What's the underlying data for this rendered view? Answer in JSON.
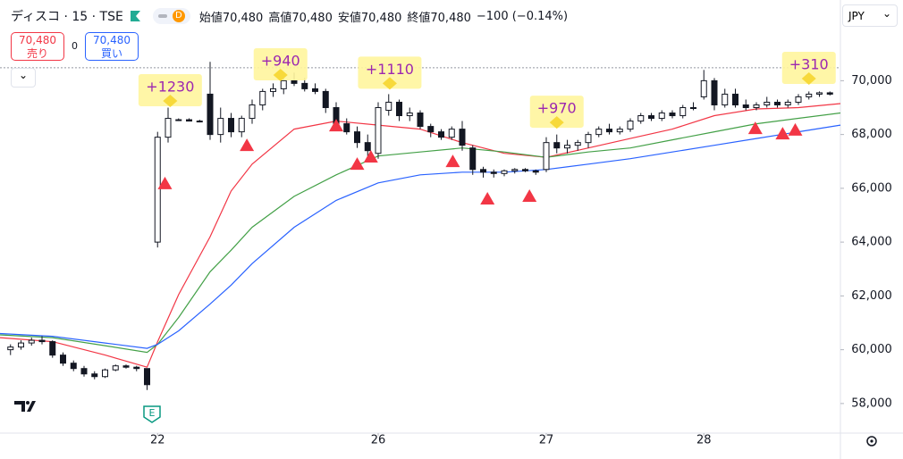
{
  "toolbar": {
    "symbol": "ディスコ · 15 · TSE",
    "badge": "D",
    "legend": [
      {
        "label": "始値",
        "value": "70,480"
      },
      {
        "label": "高値",
        "value": "70,480"
      },
      {
        "label": "安値",
        "value": "70,480"
      },
      {
        "label": "終値",
        "value": "70,480"
      }
    ],
    "change": "−100 (−0.14%)",
    "sell": {
      "price": "70,480",
      "label": "売り"
    },
    "spread": "0",
    "buy": {
      "price": "70,480",
      "label": "買い"
    },
    "currency": "JPY",
    "earnings_marker": "E"
  },
  "chart_data": {
    "type": "candlestick",
    "xlim": [
      -1,
      79
    ],
    "ylim": [
      56900,
      73000
    ],
    "xticks": [
      {
        "value": 14,
        "label": "22"
      },
      {
        "value": 35,
        "label": "26"
      },
      {
        "value": 51,
        "label": "27"
      },
      {
        "value": 66,
        "label": "28"
      }
    ],
    "yticks": [
      {
        "value": 58000,
        "label": "58,000"
      },
      {
        "value": 60000,
        "label": "60,000"
      },
      {
        "value": 62000,
        "label": "62,000"
      },
      {
        "value": 64000,
        "label": "64,000"
      },
      {
        "value": 66000,
        "label": "66,000"
      },
      {
        "value": 68000,
        "label": "68,000"
      },
      {
        "value": 70000,
        "label": "70,000"
      }
    ],
    "grid": false,
    "price_line": 70480,
    "up_color": "#ffffff",
    "down_color": "#131722",
    "ohlc": [
      [
        60000,
        60200,
        59800,
        60100
      ],
      [
        60100,
        60350,
        60000,
        60250
      ],
      [
        60250,
        60450,
        60150,
        60350
      ],
      [
        60350,
        60500,
        60200,
        60300
      ],
      [
        60300,
        60350,
        59700,
        59800
      ],
      [
        59800,
        59900,
        59400,
        59500
      ],
      [
        59500,
        59600,
        59200,
        59300
      ],
      [
        59300,
        59400,
        59000,
        59100
      ],
      [
        59100,
        59200,
        58900,
        59000
      ],
      [
        59000,
        59300,
        58950,
        59250
      ],
      [
        59250,
        59450,
        59200,
        59400
      ],
      [
        59400,
        59450,
        59300,
        59350
      ],
      [
        59350,
        59400,
        59200,
        59300
      ],
      [
        59300,
        59300,
        58500,
        58700
      ],
      [
        64000,
        68100,
        63800,
        67900
      ],
      [
        67900,
        69000,
        67700,
        68600
      ],
      [
        68550,
        68600,
        68500,
        68550
      ],
      [
        68550,
        68600,
        68500,
        68500
      ],
      [
        68500,
        68550,
        68450,
        68500
      ],
      [
        69500,
        70700,
        67800,
        68000
      ],
      [
        68000,
        69000,
        67700,
        68600
      ],
      [
        68600,
        68800,
        67900,
        68100
      ],
      [
        68100,
        68700,
        67900,
        68600
      ],
      [
        68600,
        69300,
        68400,
        69100
      ],
      [
        69100,
        69700,
        68900,
        69600
      ],
      [
        69600,
        69900,
        69400,
        69700
      ],
      [
        69700,
        70200,
        69500,
        70000
      ],
      [
        70000,
        70300,
        69800,
        69900
      ],
      [
        69900,
        70100,
        69600,
        69700
      ],
      [
        69700,
        69900,
        69500,
        69600
      ],
      [
        69600,
        69700,
        68800,
        69000
      ],
      [
        69000,
        69200,
        68200,
        68400
      ],
      [
        68400,
        68600,
        68000,
        68100
      ],
      [
        68100,
        68300,
        67500,
        67700
      ],
      [
        67700,
        68000,
        67200,
        67400
      ],
      [
        67300,
        69200,
        67100,
        69000
      ],
      [
        68900,
        69500,
        68700,
        69200
      ],
      [
        69200,
        69300,
        68500,
        68700
      ],
      [
        68700,
        69000,
        68500,
        68800
      ],
      [
        68800,
        68900,
        68200,
        68300
      ],
      [
        68300,
        68400,
        67900,
        68100
      ],
      [
        68100,
        68200,
        67800,
        67900
      ],
      [
        67900,
        68300,
        67800,
        68200
      ],
      [
        68200,
        68500,
        67400,
        67600
      ],
      [
        67500,
        67600,
        66500,
        66700
      ],
      [
        66700,
        66800,
        66400,
        66600
      ],
      [
        66600,
        66700,
        66400,
        66550
      ],
      [
        66550,
        66700,
        66450,
        66650
      ],
      [
        66650,
        66750,
        66550,
        66700
      ],
      [
        66700,
        66750,
        66600,
        66650
      ],
      [
        66650,
        66700,
        66500,
        66600
      ],
      [
        66700,
        67900,
        66600,
        67700
      ],
      [
        67700,
        68000,
        67300,
        67500
      ],
      [
        67500,
        67800,
        67300,
        67600
      ],
      [
        67600,
        67800,
        67400,
        67700
      ],
      [
        67700,
        68100,
        67500,
        68000
      ],
      [
        68000,
        68300,
        67900,
        68200
      ],
      [
        68200,
        68400,
        68000,
        68100
      ],
      [
        68100,
        68300,
        68000,
        68200
      ],
      [
        68200,
        68600,
        68100,
        68500
      ],
      [
        68500,
        68800,
        68400,
        68700
      ],
      [
        68700,
        68800,
        68500,
        68600
      ],
      [
        68600,
        68900,
        68500,
        68800
      ],
      [
        68800,
        68900,
        68600,
        68700
      ],
      [
        68700,
        69100,
        68600,
        69000
      ],
      [
        69000,
        69200,
        68900,
        69000
      ],
      [
        69400,
        70400,
        69300,
        70000
      ],
      [
        70000,
        70100,
        68900,
        69100
      ],
      [
        69100,
        69700,
        69000,
        69500
      ],
      [
        69500,
        69700,
        69000,
        69100
      ],
      [
        69100,
        69300,
        68900,
        69000
      ],
      [
        69000,
        69200,
        68900,
        69100
      ],
      [
        69100,
        69400,
        69000,
        69200
      ],
      [
        69200,
        69300,
        69000,
        69100
      ],
      [
        69100,
        69300,
        69000,
        69200
      ],
      [
        69200,
        69500,
        69100,
        69400
      ],
      [
        69400,
        69600,
        69300,
        69500
      ],
      [
        69500,
        69600,
        69400,
        69550
      ],
      [
        69550,
        69600,
        69450,
        69500
      ]
    ],
    "series": [
      {
        "color": "#f23645",
        "x": [
          -1,
          4,
          9,
          13,
          14,
          16,
          19,
          21,
          23,
          27,
          31,
          35,
          39,
          43,
          47,
          51,
          55,
          59,
          63,
          67,
          71,
          75,
          79
        ],
        "values": [
          60450,
          60300,
          59800,
          59350,
          60300,
          62050,
          64200,
          65900,
          66900,
          68200,
          68500,
          68350,
          68200,
          67700,
          67300,
          67150,
          67500,
          67850,
          68200,
          68700,
          68950,
          69000,
          69150
        ]
      },
      {
        "color": "#43a047",
        "x": [
          -1,
          4,
          9,
          13,
          14,
          16,
          19,
          21,
          23,
          27,
          31,
          35,
          39,
          43,
          47,
          51,
          55,
          59,
          63,
          67,
          71,
          75,
          79
        ],
        "values": [
          60550,
          60450,
          60150,
          59900,
          60200,
          61200,
          62900,
          63700,
          64550,
          65700,
          66500,
          67200,
          67350,
          67500,
          67350,
          67150,
          67350,
          67500,
          67800,
          68100,
          68400,
          68600,
          68800
        ]
      },
      {
        "color": "#2962ff",
        "x": [
          -1,
          4,
          9,
          13,
          14,
          16,
          19,
          21,
          23,
          27,
          31,
          35,
          39,
          43,
          47,
          51,
          55,
          59,
          63,
          67,
          71,
          75,
          79
        ],
        "values": [
          60600,
          60500,
          60250,
          60050,
          60200,
          60700,
          61700,
          62400,
          63200,
          64550,
          65550,
          66200,
          66500,
          66600,
          66600,
          66700,
          66900,
          67100,
          67350,
          67600,
          67850,
          68100,
          68350
        ]
      }
    ],
    "signals": {
      "color": "#f23645",
      "x": [
        14.7,
        22.5,
        31,
        33,
        34.3,
        42.1,
        45.4,
        49.4,
        70.9,
        73.5,
        74.7
      ],
      "y": [
        66200,
        67620,
        68350,
        66920,
        67190,
        67020,
        65630,
        65730,
        68250,
        68050,
        68190
      ]
    },
    "annotations": [
      {
        "text": "+1230",
        "x": 15.2,
        "y": 69250
      },
      {
        "text": "+940",
        "x": 25.7,
        "y": 70210
      },
      {
        "text": "+1110",
        "x": 36.1,
        "y": 69900
      },
      {
        "text": "+970",
        "x": 52,
        "y": 68450
      },
      {
        "text": "+310",
        "x": 76,
        "y": 70080
      }
    ]
  }
}
